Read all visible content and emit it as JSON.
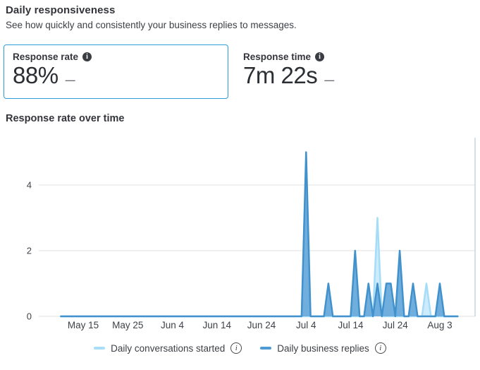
{
  "header": {
    "title": "Daily responsiveness",
    "subtitle": "See how quickly and consistently your business replies to messages."
  },
  "stats": [
    {
      "label": "Response rate",
      "value": "88%",
      "trend": "—",
      "selected": true
    },
    {
      "label": "Response time",
      "value": "7m 22s",
      "trend": "—",
      "selected": false
    }
  ],
  "section_title": "Response rate over time",
  "legend": [
    {
      "label": "Daily conversations started",
      "color": "#a8def8"
    },
    {
      "label": "Daily business replies",
      "color": "#4d9bd5"
    }
  ],
  "colors": {
    "card_border_selected": "#2d9cd8",
    "gridline": "#e6e6e6",
    "chart_right_border": "#c9d4dd",
    "axis_label": "#3f4247"
  },
  "chart_data": {
    "type": "area",
    "title": "Response rate over time",
    "grid": "horizontal",
    "legend_position": "bottom",
    "x_axis": {
      "start_date": "May 10",
      "end_date": "Aug 7",
      "total_days": 90,
      "tick_labels": [
        "May 15",
        "May 25",
        "Jun 4",
        "Jun 14",
        "Jun 24",
        "Jul 4",
        "Jul 14",
        "Jul 24",
        "Aug 3"
      ],
      "tick_day_indices": [
        5,
        15,
        25,
        35,
        45,
        55,
        65,
        75,
        85
      ]
    },
    "y_axis": {
      "ticks": [
        0,
        2,
        4
      ],
      "max": 5.4
    },
    "series": [
      {
        "name": "Daily conversations started",
        "stroke": "#a5ddf8",
        "fill": "#c9eafc",
        "baseline_value": 0,
        "spikes": [
          {
            "date": "Jul 20",
            "day_index": 71,
            "value": 3
          },
          {
            "date": "Jul 31",
            "day_index": 82,
            "value": 1
          }
        ]
      },
      {
        "name": "Daily business replies",
        "stroke": "#4191cd",
        "fill": "#68aadc",
        "baseline_value": 0,
        "spikes": [
          {
            "date": "Jul 4",
            "day_index": 55,
            "value": 5
          },
          {
            "date": "Jul 9",
            "day_index": 60,
            "value": 1
          },
          {
            "date": "Jul 15",
            "day_index": 66,
            "value": 2
          },
          {
            "date": "Jul 18",
            "day_index": 69,
            "value": 1
          },
          {
            "date": "Jul 20",
            "day_index": 71,
            "value": 1
          },
          {
            "date": "Jul 22",
            "day_index": 73,
            "value": 1
          },
          {
            "date": "Jul 23",
            "day_index": 74,
            "value": 1
          },
          {
            "date": "Jul 25",
            "day_index": 76,
            "value": 2
          },
          {
            "date": "Jul 28",
            "day_index": 79,
            "value": 1
          },
          {
            "date": "Aug 3",
            "day_index": 85,
            "value": 1
          }
        ]
      }
    ]
  }
}
